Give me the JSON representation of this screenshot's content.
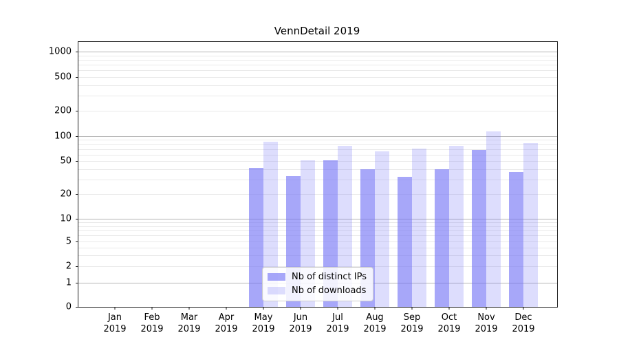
{
  "chart_data": {
    "type": "bar",
    "title": "VennDetail 2019",
    "yscale": "symlog",
    "grid": true,
    "legend_position": "lower center",
    "yticks": [
      0,
      1,
      2,
      5,
      10,
      20,
      50,
      100,
      200,
      500,
      1000
    ],
    "ylim": [
      0,
      1300
    ],
    "categories": [
      "Jan 2019",
      "Feb 2019",
      "Mar 2019",
      "Apr 2019",
      "May 2019",
      "Jun 2019",
      "Jul 2019",
      "Aug 2019",
      "Sep 2019",
      "Oct 2019",
      "Nov 2019",
      "Dec 2019"
    ],
    "x_tick_labels": [
      {
        "month": "Jan",
        "year": "2019"
      },
      {
        "month": "Feb",
        "year": "2019"
      },
      {
        "month": "Mar",
        "year": "2019"
      },
      {
        "month": "Apr",
        "year": "2019"
      },
      {
        "month": "May",
        "year": "2019"
      },
      {
        "month": "Jun",
        "year": "2019"
      },
      {
        "month": "Jul",
        "year": "2019"
      },
      {
        "month": "Aug",
        "year": "2019"
      },
      {
        "month": "Sep",
        "year": "2019"
      },
      {
        "month": "Oct",
        "year": "2019"
      },
      {
        "month": "Nov",
        "year": "2019"
      },
      {
        "month": "Dec",
        "year": "2019"
      }
    ],
    "series": [
      {
        "name": "Nb of distinct IPs",
        "color_key": "bar_dark",
        "values": [
          0,
          0,
          0,
          0,
          41,
          33,
          51,
          40,
          32,
          40,
          68,
          37
        ]
      },
      {
        "name": "Nb of downloads",
        "color_key": "bar_light",
        "values": [
          0,
          0,
          0,
          0,
          86,
          51,
          76,
          66,
          71,
          76,
          115,
          83
        ]
      }
    ]
  },
  "colors": {
    "bar_dark": "rgba(113,113,246,0.62)",
    "bar_light": "rgba(113,113,246,0.24)",
    "grid_major": "#b3b3b3",
    "grid_minor": "#e9e9e9",
    "axis": "#1a1a1a"
  }
}
